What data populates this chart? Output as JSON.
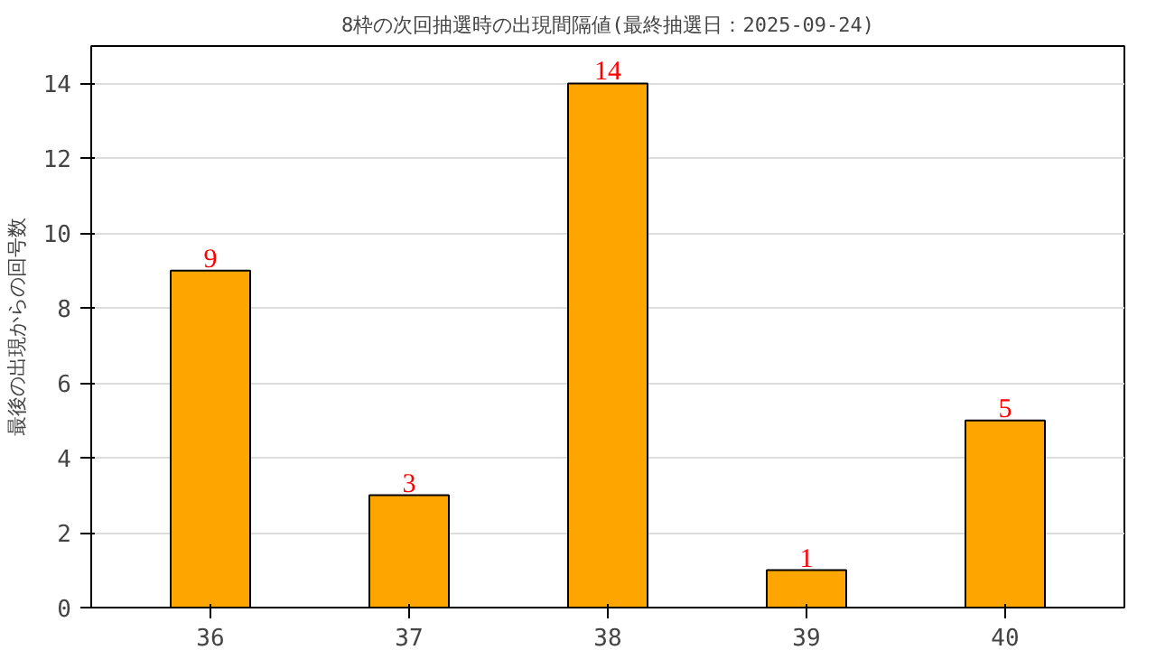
{
  "chart_data": {
    "type": "bar",
    "title": "8枠の次回抽選時の出現間隔値(最終抽選日：2025-09-24)",
    "ylabel": "最後の出現からの回号数",
    "categories": [
      "36",
      "37",
      "38",
      "39",
      "40"
    ],
    "values": [
      9,
      3,
      14,
      1,
      5
    ],
    "color": "#ffa500",
    "ylim": [
      0,
      15
    ],
    "yticks": [
      0,
      2,
      4,
      6,
      8,
      10,
      12,
      14
    ],
    "grid": "y",
    "data_labels": true
  }
}
